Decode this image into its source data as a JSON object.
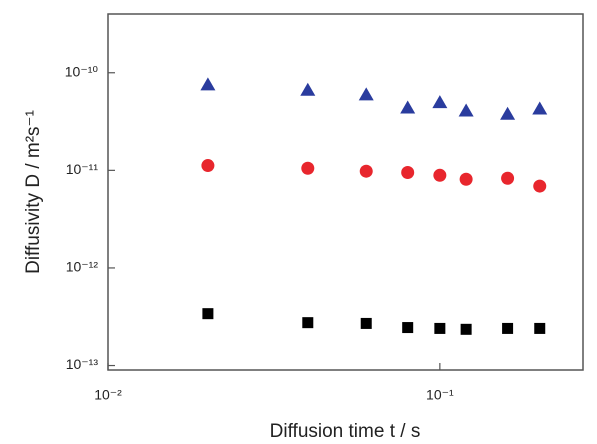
{
  "chart_data": {
    "type": "scatter",
    "xlabel": "Diffusion time t / s",
    "ylabel": "Diffusivity D / m²s⁻¹",
    "x": [
      0.02,
      0.04,
      0.06,
      0.08,
      0.1,
      0.12,
      0.16,
      0.2
    ],
    "series": [
      {
        "color": "#2a3c9e",
        "marker": "triangle",
        "values": [
          7.6e-11,
          6.7e-11,
          6e-11,
          4.4e-11,
          5e-11,
          4.1e-11,
          3.8e-11,
          4.3e-11
        ]
      },
      {
        "color": "#e8262d",
        "marker": "circle",
        "values": [
          1.12e-11,
          1.05e-11,
          9.8e-12,
          9.5e-12,
          8.9e-12,
          8.1e-12,
          8.3e-12,
          6.9e-12
        ]
      },
      {
        "color": "#000000",
        "marker": "square",
        "values": [
          3.4e-13,
          2.75e-13,
          2.7e-13,
          2.45e-13,
          2.4e-13,
          2.35e-13,
          2.4e-13,
          2.4e-13
        ]
      }
    ],
    "xlog": true,
    "ylog": true,
    "xlim": [
      0.01,
      0.27
    ],
    "ylim": [
      9e-14,
      4e-10
    ],
    "xticks": [
      {
        "value": 0.01,
        "label": "10⁻²"
      },
      {
        "value": 0.1,
        "label": "10⁻¹"
      }
    ],
    "yticks": [
      {
        "value": 1e-13,
        "label": "10⁻¹³"
      },
      {
        "value": 1e-12,
        "label": "10⁻¹²"
      },
      {
        "value": 1e-11,
        "label": "10⁻¹¹"
      },
      {
        "value": 1e-10,
        "label": "10⁻¹⁰"
      }
    ]
  }
}
